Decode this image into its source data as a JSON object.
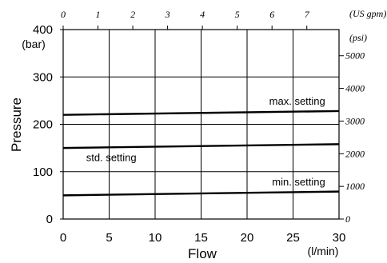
{
  "chart_data": {
    "type": "line",
    "xlabel": "Flow",
    "x_unit": "(l/min)",
    "ylabel": "Pressure",
    "y_unit": "(bar)",
    "x2_unit": "(US gpm)",
    "y2_unit": "(psi)",
    "xlim": [
      0,
      30
    ],
    "ylim": [
      0,
      400
    ],
    "x_ticks": [
      0,
      5,
      10,
      15,
      20,
      25,
      30
    ],
    "y_ticks": [
      0,
      100,
      200,
      300,
      400
    ],
    "x2_ticks": [
      0,
      1,
      2,
      3,
      4,
      5,
      6,
      7
    ],
    "y2_ticks": [
      0,
      1000,
      2000,
      3000,
      4000,
      5000
    ],
    "grid": true,
    "series": [
      {
        "name": "max. setting",
        "x": [
          0,
          30
        ],
        "y": [
          220,
          228
        ]
      },
      {
        "name": "std. setting",
        "x": [
          0,
          30
        ],
        "y": [
          150,
          158
        ]
      },
      {
        "name": "min. setting",
        "x": [
          0,
          30
        ],
        "y": [
          50,
          58
        ]
      }
    ]
  }
}
